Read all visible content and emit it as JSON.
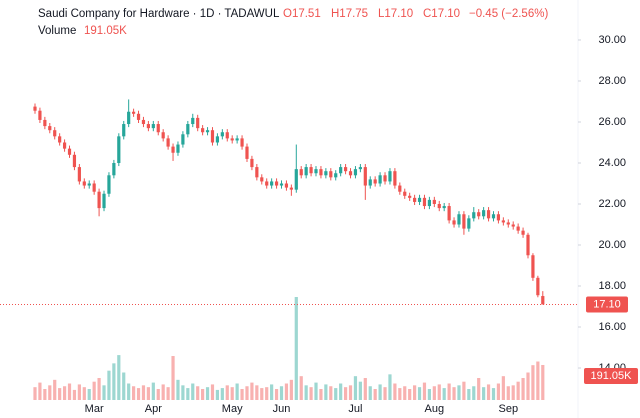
{
  "chart_data": {
    "type": "candlestick",
    "title": "Saudi Company for Hardware · 1D · TADAWUL",
    "ohlc_labels": [
      "O17.51",
      "H17.75",
      "L17.10",
      "C17.10"
    ],
    "change_label": "−0.45 (−2.56%)",
    "volume_title": "Volume",
    "last_volume_label": "191.05K",
    "last_price_label": "17.10",
    "up_color": "#26a69a",
    "down_color": "#ef5350",
    "grid": false,
    "ylim": [
      12.44,
      31.95
    ],
    "yticks": [
      {
        "value": 14,
        "label": "14.00"
      },
      {
        "value": 16,
        "label": "16.00"
      },
      {
        "value": 18,
        "label": "18.00"
      },
      {
        "value": 20,
        "label": "20.00"
      },
      {
        "value": 22,
        "label": "22.00"
      },
      {
        "value": 24,
        "label": "24.00"
      },
      {
        "value": 26,
        "label": "26.00"
      },
      {
        "value": 28,
        "label": "28.00"
      },
      {
        "value": 30,
        "label": "30.00"
      }
    ],
    "categories": [
      null,
      null,
      null,
      null,
      null,
      null,
      null,
      null,
      null,
      null,
      null,
      null,
      "Mar",
      null,
      null,
      null,
      null,
      null,
      null,
      null,
      null,
      null,
      null,
      null,
      "Apr",
      null,
      null,
      null,
      null,
      null,
      null,
      null,
      null,
      null,
      null,
      null,
      null,
      null,
      null,
      null,
      "May",
      null,
      null,
      null,
      null,
      null,
      null,
      null,
      null,
      null,
      "Jun",
      null,
      null,
      null,
      null,
      null,
      null,
      null,
      null,
      null,
      null,
      null,
      null,
      null,
      null,
      "Jul",
      null,
      null,
      null,
      null,
      null,
      null,
      null,
      null,
      null,
      null,
      null,
      null,
      null,
      null,
      null,
      "Aug",
      null,
      null,
      null,
      null,
      null,
      null,
      null,
      null,
      null,
      null,
      null,
      null,
      null,
      null,
      "Sep",
      null,
      null,
      null,
      null,
      null,
      null,
      null
    ],
    "open": [
      26.75,
      26.55,
      26.1,
      25.8,
      25.6,
      25.3,
      25.0,
      24.7,
      24.4,
      23.8,
      23.1,
      22.9,
      23.0,
      22.6,
      21.8,
      22.5,
      23.4,
      24.0,
      25.3,
      25.9,
      26.5,
      26.4,
      26.1,
      25.9,
      25.7,
      25.9,
      25.5,
      25.2,
      24.8,
      24.5,
      24.9,
      25.4,
      25.9,
      26.2,
      25.7,
      25.5,
      25.6,
      25.0,
      25.3,
      25.5,
      25.2,
      25.1,
      25.2,
      24.8,
      24.2,
      23.8,
      23.3,
      23.1,
      22.9,
      23.1,
      22.9,
      23.0,
      22.8,
      22.7,
      23.7,
      23.4,
      23.8,
      23.5,
      23.7,
      23.4,
      23.6,
      23.3,
      23.5,
      23.8,
      23.6,
      23.4,
      23.7,
      23.8,
      22.9,
      23.2,
      23.0,
      23.4,
      23.1,
      23.6,
      22.9,
      22.6,
      22.4,
      22.3,
      22.1,
      22.3,
      21.9,
      22.2,
      22.0,
      21.8,
      21.9,
      21.2,
      21.0,
      21.5,
      20.8,
      21.3,
      21.6,
      21.4,
      21.7,
      21.3,
      21.5,
      21.2,
      21.1,
      21.0,
      20.9,
      20.7,
      20.5,
      19.5,
      18.4,
      17.51
    ],
    "high": [
      26.9,
      26.7,
      26.25,
      25.95,
      25.75,
      25.45,
      25.15,
      24.85,
      24.55,
      23.95,
      23.25,
      23.15,
      23.15,
      22.75,
      22.65,
      23.55,
      24.15,
      25.45,
      26.05,
      27.1,
      26.65,
      26.55,
      26.25,
      26.05,
      26.05,
      26.05,
      25.65,
      25.35,
      24.95,
      25.05,
      25.55,
      26.05,
      26.4,
      26.35,
      25.85,
      25.75,
      25.75,
      25.45,
      25.65,
      25.65,
      25.35,
      25.35,
      25.35,
      24.95,
      24.35,
      23.95,
      23.45,
      23.25,
      23.25,
      23.25,
      23.15,
      23.15,
      22.95,
      24.9,
      23.85,
      23.95,
      23.95,
      23.85,
      23.85,
      23.75,
      23.75,
      23.65,
      23.95,
      23.95,
      23.75,
      23.85,
      23.95,
      23.95,
      23.35,
      23.35,
      23.55,
      23.55,
      23.75,
      23.75,
      23.05,
      22.75,
      22.55,
      22.45,
      22.45,
      22.45,
      22.35,
      22.35,
      22.15,
      22.05,
      22.05,
      21.35,
      21.65,
      21.65,
      21.45,
      21.85,
      21.75,
      21.85,
      21.85,
      21.65,
      21.65,
      21.35,
      21.25,
      21.15,
      21.05,
      20.85,
      20.6,
      19.6,
      18.5,
      17.75
    ],
    "low": [
      26.4,
      25.95,
      25.65,
      25.45,
      25.15,
      24.85,
      24.55,
      24.25,
      23.65,
      22.95,
      22.75,
      22.75,
      22.45,
      21.4,
      21.65,
      22.35,
      23.25,
      23.85,
      25.15,
      25.75,
      26.25,
      25.95,
      25.75,
      25.55,
      25.55,
      25.35,
      25.05,
      24.65,
      24.1,
      24.35,
      24.75,
      25.25,
      25.75,
      25.55,
      25.35,
      25.35,
      24.85,
      24.85,
      25.15,
      25.05,
      24.95,
      24.95,
      24.65,
      24.05,
      23.65,
      23.15,
      22.95,
      22.75,
      22.75,
      22.75,
      22.75,
      22.65,
      22.4,
      22.55,
      23.25,
      23.25,
      23.35,
      23.35,
      23.25,
      23.25,
      23.15,
      23.15,
      23.35,
      23.45,
      23.25,
      23.25,
      23.55,
      22.2,
      22.75,
      22.85,
      22.85,
      22.95,
      22.95,
      22.75,
      22.45,
      22.25,
      22.15,
      21.95,
      21.95,
      21.75,
      21.75,
      21.85,
      21.65,
      21.65,
      21.05,
      20.85,
      20.85,
      20.5,
      20.65,
      21.15,
      21.25,
      21.25,
      21.15,
      21.15,
      21.05,
      20.95,
      20.85,
      20.75,
      20.55,
      20.35,
      19.35,
      18.25,
      17.45,
      17.1
    ],
    "close": [
      26.55,
      26.1,
      25.8,
      25.6,
      25.3,
      25.0,
      24.7,
      24.4,
      23.8,
      23.1,
      22.9,
      23.0,
      22.6,
      21.8,
      22.5,
      23.4,
      24.0,
      25.3,
      25.9,
      26.5,
      26.4,
      26.1,
      25.9,
      25.7,
      25.9,
      25.5,
      25.2,
      24.8,
      24.5,
      24.9,
      25.4,
      25.9,
      26.2,
      25.7,
      25.5,
      25.6,
      25.0,
      25.3,
      25.5,
      25.2,
      25.1,
      25.2,
      24.8,
      24.2,
      23.8,
      23.3,
      23.1,
      22.9,
      23.1,
      22.9,
      23.0,
      22.8,
      22.7,
      23.7,
      23.4,
      23.8,
      23.5,
      23.7,
      23.4,
      23.6,
      23.3,
      23.5,
      23.8,
      23.6,
      23.4,
      23.7,
      23.8,
      22.9,
      23.2,
      23.0,
      23.4,
      23.1,
      23.6,
      22.9,
      22.6,
      22.4,
      22.3,
      22.1,
      22.3,
      21.9,
      22.2,
      22.0,
      21.8,
      21.9,
      21.2,
      21.0,
      21.5,
      20.8,
      21.3,
      21.6,
      21.4,
      21.7,
      21.3,
      21.5,
      21.2,
      21.1,
      21.0,
      20.9,
      20.7,
      20.5,
      19.5,
      18.4,
      17.55,
      17.1
    ],
    "volume": [
      70000,
      95000,
      60000,
      80000,
      110000,
      65000,
      75000,
      90000,
      55000,
      85000,
      70000,
      60000,
      100000,
      120000,
      80000,
      160000,
      200000,
      245000,
      150000,
      90000,
      75000,
      65000,
      80000,
      70000,
      95000,
      60000,
      85000,
      70000,
      240000,
      110000,
      80000,
      65000,
      90000,
      75000,
      60000,
      70000,
      85000,
      55000,
      65000,
      80000,
      70000,
      90000,
      60000,
      75000,
      95000,
      80000,
      65000,
      70000,
      85000,
      60000,
      75000,
      90000,
      110000,
      562000,
      130000,
      80000,
      70000,
      95000,
      60000,
      85000,
      75000,
      65000,
      90000,
      70000,
      80000,
      130000,
      100000,
      120000,
      75000,
      60000,
      85000,
      70000,
      140000,
      90000,
      65000,
      75000,
      60000,
      80000,
      70000,
      95000,
      60000,
      75000,
      85000,
      65000,
      90000,
      70000,
      80000,
      100000,
      60000,
      75000,
      120000,
      70000,
      85000,
      65000,
      90000,
      130000,
      75000,
      80000,
      100000,
      120000,
      150000,
      190000,
      210000,
      191050
    ]
  }
}
